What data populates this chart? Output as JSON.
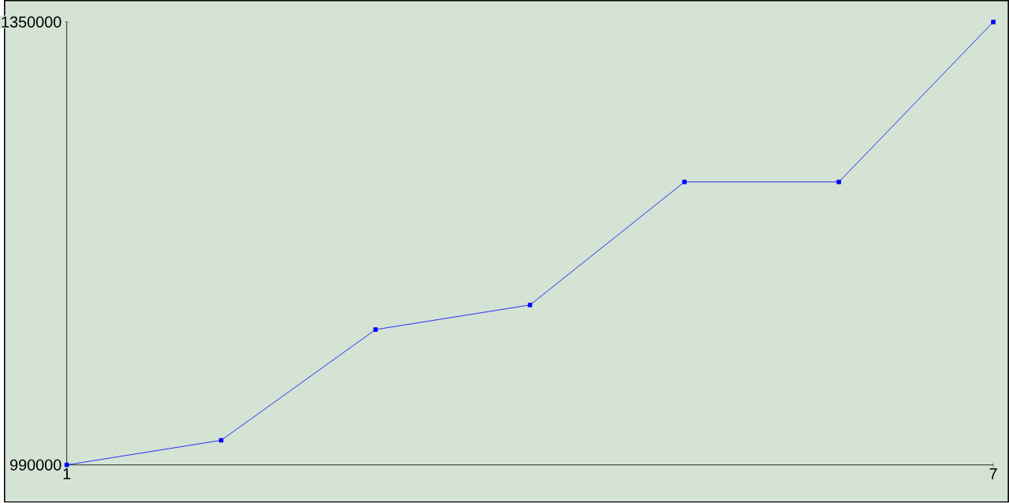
{
  "chart_data": {
    "type": "line",
    "x": [
      1,
      2,
      3,
      4,
      5,
      6,
      7
    ],
    "series": [
      {
        "color": "#0000ff",
        "values": [
          990000,
          1010000,
          1100000,
          1120000,
          1220000,
          1220000,
          1350000
        ]
      }
    ],
    "xlim": [
      1,
      7
    ],
    "ylim": [
      990000,
      1350000
    ],
    "xticks": [
      1,
      7
    ],
    "yticks": [
      990000,
      1350000
    ],
    "grid": false,
    "marker": "square",
    "line_style": "solid"
  }
}
